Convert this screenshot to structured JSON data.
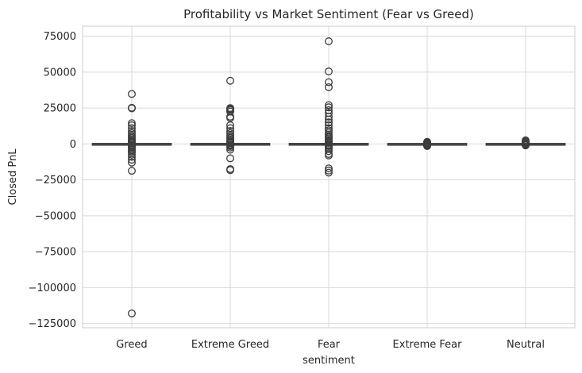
{
  "chart_data": {
    "type": "box",
    "title": "Profitability vs Market Sentiment (Fear vs Greed)",
    "xlabel": "sentiment",
    "ylabel": "Closed PnL",
    "ylim": [
      -128000,
      82000
    ],
    "yticks": [
      75000,
      50000,
      25000,
      0,
      -25000,
      -50000,
      -75000,
      -100000,
      -125000
    ],
    "ytick_labels": [
      "75000",
      "50000",
      "25000",
      "0",
      "−25000",
      "−50000",
      "−75000",
      "−100000",
      "−125000"
    ],
    "grid": true,
    "categories": [
      "Greed",
      "Extreme Greed",
      "Fear",
      "Extreme Fear",
      "Neutral"
    ],
    "boxes": [
      {
        "category": "Greed",
        "whisker_low": -110,
        "q1": -5,
        "median": 0,
        "q3": 30,
        "whisker_high": 150,
        "fliers": [
          34800,
          25200,
          24800,
          14500,
          13000,
          11000,
          9000,
          7500,
          6000,
          5000,
          4000,
          3000,
          2200,
          1500,
          900,
          500,
          -500,
          -900,
          -1500,
          -2200,
          -3000,
          -4000,
          -5000,
          -6000,
          -7500,
          -9000,
          -11000,
          -13000,
          -18700,
          -118000
        ]
      },
      {
        "category": "Extreme Greed",
        "whisker_low": -120,
        "q1": -5,
        "median": 0,
        "q3": 35,
        "whisker_high": 170,
        "fliers": [
          44000,
          25000,
          24500,
          24000,
          23500,
          22500,
          19000,
          18000,
          13000,
          11000,
          9000,
          7500,
          6000,
          5000,
          4000,
          3000,
          2200,
          1500,
          900,
          500,
          -500,
          -900,
          -1500,
          -2500,
          -4000,
          -10000,
          -17500,
          -18200
        ]
      },
      {
        "category": "Fear",
        "whisker_low": -120,
        "q1": -5,
        "median": 0,
        "q3": 40,
        "whisker_high": 200,
        "fliers": [
          71500,
          50500,
          43000,
          39500,
          27000,
          25500,
          23500,
          21500,
          19000,
          17000,
          15000,
          13000,
          11000,
          9500,
          8000,
          6500,
          5500,
          4500,
          3500,
          2500,
          1800,
          1200,
          700,
          -500,
          -900,
          -1500,
          -2500,
          -3500,
          -5000,
          -7000,
          -8000,
          -17000,
          -18500,
          -20000
        ]
      },
      {
        "category": "Extreme Fear",
        "whisker_low": -60,
        "q1": -3,
        "median": 0,
        "q3": 15,
        "whisker_high": 80,
        "fliers": [
          1500,
          1000,
          600,
          300,
          -300,
          -600,
          -1000,
          -1500
        ]
      },
      {
        "category": "Neutral",
        "whisker_low": -70,
        "q1": -3,
        "median": 0,
        "q3": 20,
        "whisker_high": 90,
        "fliers": [
          2500,
          1800,
          1200,
          600,
          300,
          -300,
          -600,
          -1000
        ]
      }
    ]
  }
}
